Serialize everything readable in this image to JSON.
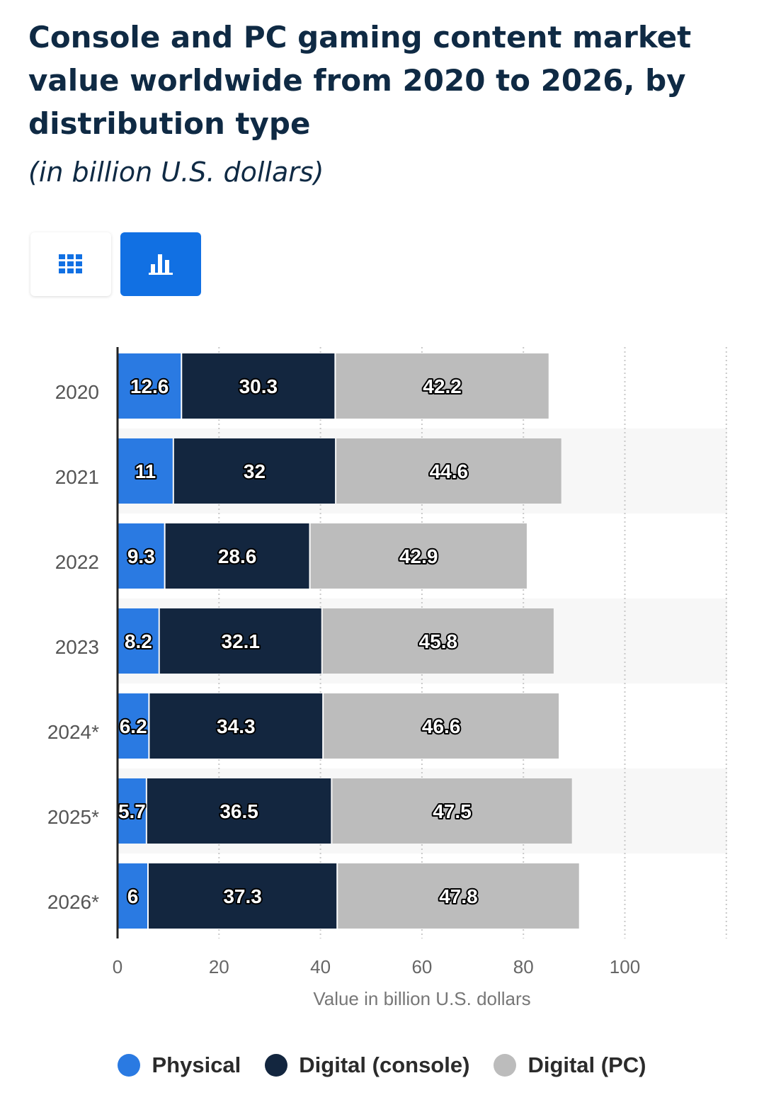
{
  "header": {
    "title": "Console and PC gaming content market value worldwide from 2020 to 2026, by distribution type",
    "subtitle": "(in billion U.S. dollars)"
  },
  "toolbar": {
    "table_icon": "grid-icon",
    "chart_icon": "bar-chart-icon",
    "active": "chart"
  },
  "colors": {
    "physical": "#2a7ae2",
    "digital_console": "#13263f",
    "digital_pc": "#bcbcbc",
    "accent": "#1170e3"
  },
  "chart_data": {
    "type": "bar",
    "orientation": "horizontal",
    "stacked": true,
    "title": "Console and PC gaming content market value worldwide from 2020 to 2026, by distribution type",
    "subtitle": "(in billion U.S. dollars)",
    "categories": [
      "2020",
      "2021",
      "2022",
      "2023",
      "2024*",
      "2025*",
      "2026*"
    ],
    "series": [
      {
        "name": "Physical",
        "values": [
          12.6,
          11,
          9.3,
          8.2,
          6.2,
          5.7,
          6
        ]
      },
      {
        "name": "Digital (console)",
        "values": [
          30.3,
          32,
          28.6,
          32.1,
          34.3,
          36.5,
          37.3
        ]
      },
      {
        "name": "Digital (PC)",
        "values": [
          42.2,
          44.6,
          42.9,
          45.8,
          46.6,
          47.5,
          47.8
        ]
      }
    ],
    "xlabel": "Value in billion U.S. dollars",
    "ylabel": "",
    "xlim": [
      0,
      120
    ],
    "xticks": [
      0,
      20,
      40,
      60,
      80,
      100
    ],
    "grid": true,
    "legend": "bottom"
  }
}
